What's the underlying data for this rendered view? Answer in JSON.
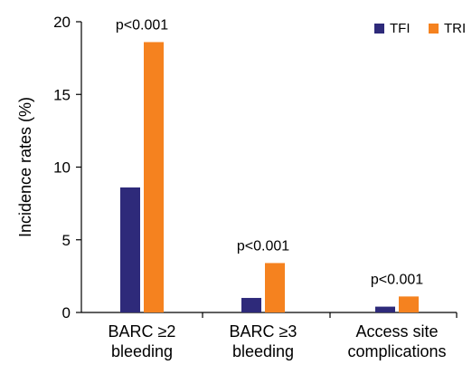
{
  "chart_data": {
    "type": "bar",
    "categories": [
      [
        "BARC ≥2",
        "bleeding"
      ],
      [
        "BARC ≥3",
        "bleeding"
      ],
      [
        "Access site",
        "complications"
      ]
    ],
    "series": [
      {
        "name": "TFI",
        "color": "#2e2a7a",
        "values": [
          8.6,
          1.0,
          0.4
        ]
      },
      {
        "name": "TRI",
        "color": "#f5821f",
        "values": [
          18.6,
          3.4,
          1.1
        ]
      }
    ],
    "ylabel": "Incidence rates (%)",
    "xlabel": "",
    "ylim": [
      0,
      20
    ],
    "yticks": [
      0,
      5,
      10,
      15,
      20
    ],
    "annotations": [
      "p<0.001",
      "p<0.001",
      "p<0.001"
    ],
    "legend_position": "top-right",
    "grid": false
  }
}
